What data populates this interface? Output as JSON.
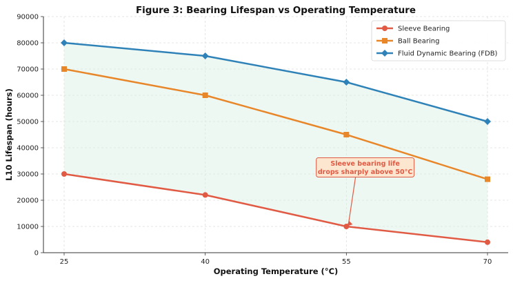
{
  "chart_data": {
    "type": "line",
    "title": "Figure 3: Bearing Lifespan vs Operating Temperature",
    "xlabel": "Operating Temperature (°C)",
    "ylabel": "L10 Lifespan (hours)",
    "x": [
      25,
      40,
      55,
      70
    ],
    "xticks": [
      "25",
      "40",
      "55",
      "70"
    ],
    "ylim": [
      0,
      90000
    ],
    "yticks": [
      "0",
      "10000",
      "20000",
      "30000",
      "40000",
      "50000",
      "60000",
      "70000",
      "80000",
      "90000"
    ],
    "grid": true,
    "legend_position": "top-right",
    "series": [
      {
        "name": "Sleeve Bearing",
        "values": [
          30000,
          22000,
          10000,
          4000
        ],
        "color": "#e05a44",
        "marker": "circle"
      },
      {
        "name": "Ball Bearing",
        "values": [
          70000,
          60000,
          45000,
          28000
        ],
        "color": "#e8862a",
        "marker": "square"
      },
      {
        "name": "Fluid Dynamic Bearing (FDB)",
        "values": [
          80000,
          75000,
          65000,
          50000
        ],
        "color": "#2e82b7",
        "marker": "diamond"
      }
    ],
    "fill_between": {
      "lower": "Sleeve Bearing",
      "upper": "Fluid Dynamic Bearing (FDB)",
      "color": "#d9f0e4"
    },
    "annotation": {
      "lines": [
        "Sleeve bearing life",
        "drops sharply above 50°C"
      ],
      "target_x": 55,
      "target_y": 10000,
      "text_x": 57,
      "text_y": 32500,
      "color": "#e05a44",
      "box_color": "#fde6cf"
    }
  }
}
